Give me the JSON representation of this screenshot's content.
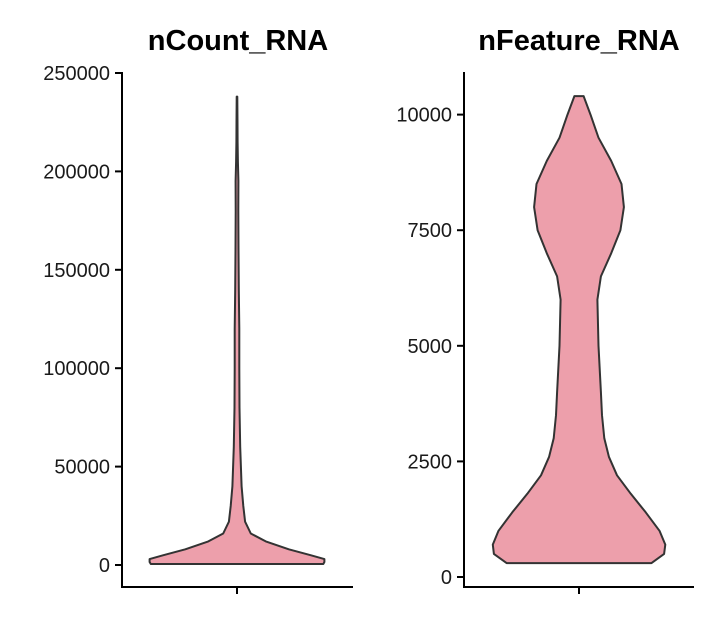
{
  "chart_data": [
    {
      "type": "violin",
      "title": "nCount_RNA",
      "xlabel": "",
      "ylabel": "",
      "ylim": [
        0,
        250000
      ],
      "yticks": [
        0,
        50000,
        100000,
        150000,
        200000,
        250000
      ],
      "ytick_labels": [
        "0",
        "50000",
        "100000",
        "150000",
        "200000",
        "250000"
      ],
      "fill_color": "#ED9FAB",
      "outline_color": "#333333",
      "grid": false,
      "legend": "none",
      "data_range": [
        500,
        238000
      ],
      "density_profile": {
        "y": [
          500,
          1500,
          3000,
          5000,
          8000,
          12000,
          16000,
          22000,
          30000,
          40000,
          60000,
          80000,
          100000,
          120000,
          140000,
          160000,
          180000,
          195000,
          205000,
          215000,
          225000,
          238000
        ],
        "half_width": [
          0.75,
          0.76,
          0.76,
          0.64,
          0.45,
          0.25,
          0.12,
          0.07,
          0.055,
          0.04,
          0.028,
          0.022,
          0.02,
          0.02,
          0.016,
          0.013,
          0.011,
          0.012,
          0.008,
          0.005,
          0.004,
          0.003
        ]
      }
    },
    {
      "type": "violin",
      "title": "nFeature_RNA",
      "xlabel": "",
      "ylabel": "",
      "ylim": [
        0,
        10900
      ],
      "yticks": [
        0,
        2500,
        5000,
        7500,
        10000
      ],
      "ytick_labels": [
        "0",
        "2500",
        "5000",
        "7500",
        "10000"
      ],
      "fill_color": "#ED9FAB",
      "outline_color": "#333333",
      "grid": false,
      "legend": "none",
      "data_range": [
        300,
        10400
      ],
      "density_profile": {
        "y": [
          300,
          500,
          700,
          1000,
          1400,
          1800,
          2200,
          2600,
          3000,
          3500,
          4000,
          5000,
          6000,
          6500,
          7000,
          7500,
          8000,
          8500,
          9000,
          9500,
          10000,
          10400
        ],
        "half_width": [
          0.63,
          0.74,
          0.75,
          0.7,
          0.58,
          0.45,
          0.33,
          0.26,
          0.22,
          0.2,
          0.19,
          0.17,
          0.16,
          0.19,
          0.28,
          0.36,
          0.39,
          0.37,
          0.28,
          0.17,
          0.1,
          0.04
        ]
      }
    }
  ]
}
